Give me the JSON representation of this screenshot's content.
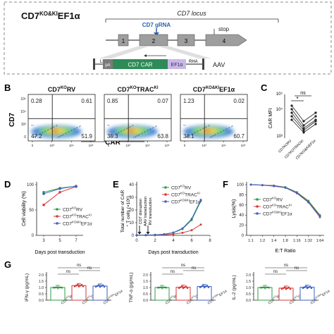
{
  "panelA": {
    "title_main": "CD7",
    "title_sup": "KO&KI",
    "title_tail": "EF1α",
    "locus_label": "CD7 locus",
    "grna_label": "CD7 gRNA",
    "exons": [
      "1",
      "2",
      "3",
      "4"
    ],
    "stop_label": "stop",
    "cassette": [
      "LHA",
      "pA",
      "CD7 CAR",
      "EF1α",
      "RHA"
    ],
    "aav_label": "AAV"
  },
  "panelB": {
    "letter": "B",
    "ylabel": "CD7",
    "xlabel": "CAR",
    "plots": [
      {
        "title_main": "CD7",
        "title_sup": "KO",
        "title_tail": "RV",
        "q": [
          "0.28",
          "0.61",
          "47.2",
          "51.9"
        ]
      },
      {
        "title_main": "CD7",
        "title_sup": "KO",
        "title_tail": "TRAC",
        "title_sup2": "KI",
        "q": [
          "0.85",
          "0.07",
          "35.3",
          "63.8"
        ]
      },
      {
        "title_main": "CD7",
        "title_sup": "KO&KI",
        "title_tail": "EF1α",
        "q": [
          "1.23",
          "0.02",
          "38.1",
          "60.7"
        ]
      }
    ],
    "ytick_labels": [
      "0",
      "10³",
      "10⁴",
      "10⁵"
    ],
    "xtick_labels": [
      "0",
      "10³",
      "10⁴",
      "10⁵",
      "0",
      "10³",
      "10⁴",
      "10⁵",
      "0",
      "10³",
      "10⁴",
      "10⁵"
    ]
  },
  "panelC": {
    "letter": "C",
    "ylabel": "CAR MFI",
    "ytick_labels": [
      "10³",
      "10⁴",
      "10⁵"
    ],
    "sig_star": "*",
    "sig_ns": "ns",
    "xcats": [
      "CD7KORV",
      "CD7KOTRACKI",
      "CD7KO&KIEF1α"
    ]
  },
  "panelD": {
    "letter": "D",
    "ylabel": "Cell viability (%)",
    "xlabel": "Days post transduction",
    "ytick_labels": [
      "0",
      "50",
      "100"
    ],
    "xtick_labels": [
      "3",
      "5",
      "7"
    ],
    "legend": [
      "CD7KORV",
      "CD7KOTRACKI",
      "CD7KO&KIEF1α"
    ]
  },
  "panelE": {
    "letter": "E",
    "ylabel_1": "Total number of CAR",
    "ylabel_2": "⁺ T cells (×10⁶)",
    "xlabel": "Days post transduction",
    "ytick_labels": [
      "0",
      "10",
      "20",
      "30",
      "40"
    ],
    "xtick_labels": [
      "0",
      "2",
      "4",
      "6",
      "8"
    ],
    "arrows": [
      "CD7 disruption",
      "AAV transduction",
      "RV transduction"
    ],
    "legend": [
      "CD7KORV",
      "CD7KOTRACKI",
      "CD7KO&KIEF1α"
    ]
  },
  "panelF": {
    "letter": "F",
    "ylabel": "Lysis(%)",
    "xlabel": "E:T Ratio",
    "ytick_labels": [
      "0",
      "20",
      "40",
      "60",
      "80",
      "100"
    ],
    "xtick_labels": [
      "1:1",
      "1:2",
      "1:4",
      "1:8",
      "1:16",
      "1:32",
      "1:64"
    ],
    "legend": [
      "CD7KORV",
      "CD7KOTRACKI",
      "CD7KO&KIEF1α"
    ]
  },
  "panelG": {
    "letter": "G",
    "plots": [
      {
        "ylabel": "IFN-γ (pg/mL)",
        "ytick_labels": [
          "0.0",
          "0.5",
          "1.0",
          "1.5",
          "2.0"
        ]
      },
      {
        "ylabel": "TNF-α (pg/mL)",
        "ytick_labels": [
          "0.0",
          "0.5",
          "1.0",
          "1.5",
          "2.0"
        ]
      },
      {
        "ylabel": "IL-2 (pg/mL)",
        "ytick_labels": [
          "0.0",
          "0.5",
          "1.0",
          "1.5",
          "2.0"
        ]
      }
    ],
    "ns": "ns",
    "xcats": [
      "CD7KORV",
      "CD7KOTRACKI",
      "CD7KO&KIEF1α"
    ]
  },
  "colors": {
    "rv": "#2e9e44",
    "trac": "#d63a3a",
    "ef1a": "#3e62c4",
    "car_box": "#2e8b57",
    "ef1a_box": "#c9b7ea",
    "gray_box": "#9e9e9e"
  },
  "chart_data": [
    {
      "type": "line",
      "panel": "D",
      "x": [
        3,
        5,
        7
      ],
      "series": [
        {
          "name": "CD7KORV",
          "values": [
            85,
            93,
            97
          ]
        },
        {
          "name": "CD7KOTRACKI",
          "values": [
            60,
            85,
            96
          ]
        },
        {
          "name": "CD7KO&KIEF1α",
          "values": [
            82,
            92,
            97
          ]
        }
      ],
      "ylim": [
        0,
        100
      ]
    },
    {
      "type": "line",
      "panel": "E",
      "x": [
        0,
        1,
        2,
        3,
        4,
        5,
        6,
        7
      ],
      "series": [
        {
          "name": "CD7KORV",
          "values": [
            0.1,
            0.2,
            0.4,
            0.8,
            2,
            5,
            12,
            27
          ]
        },
        {
          "name": "CD7KOTRACKI",
          "values": [
            0.1,
            0.1,
            0.2,
            0.4,
            1,
            2,
            4,
            8.5
          ]
        },
        {
          "name": "CD7KO&KIEF1α",
          "values": [
            0.1,
            0.2,
            0.4,
            0.9,
            2.2,
            5.5,
            13,
            28
          ]
        }
      ],
      "ylim": [
        0,
        40
      ]
    },
    {
      "type": "line",
      "panel": "F",
      "categories": [
        "1:1",
        "1:2",
        "1:4",
        "1:8",
        "1:16",
        "1:32",
        "1:64"
      ],
      "series": [
        {
          "name": "CD7KORV",
          "values": [
            100,
            99,
            98,
            95,
            85,
            68,
            40
          ]
        },
        {
          "name": "CD7KOTRACKI",
          "values": [
            100,
            99,
            98,
            94,
            84,
            66,
            38
          ]
        },
        {
          "name": "CD7KO&KIEF1α",
          "values": [
            100,
            99,
            97,
            94,
            83,
            65,
            36
          ]
        }
      ],
      "ylim": [
        0,
        100
      ]
    },
    {
      "type": "bar",
      "panel": "G",
      "subplots": [
        {
          "categories": [
            "CD7KORV",
            "CD7KOTRACKI",
            "CD7KO&KIEF1α"
          ],
          "values": [
            1.0,
            1.15,
            1.12
          ]
        },
        {
          "categories": [
            "CD7KORV",
            "CD7KOTRACKI",
            "CD7KO&KIEF1α"
          ],
          "values": [
            1.0,
            1.02,
            1.08
          ]
        },
        {
          "categories": [
            "CD7KORV",
            "CD7KOTRACKI",
            "CD7KO&KIEF1α"
          ],
          "values": [
            1.0,
            0.95,
            1.02
          ]
        }
      ],
      "ylim": [
        0,
        2
      ]
    }
  ]
}
